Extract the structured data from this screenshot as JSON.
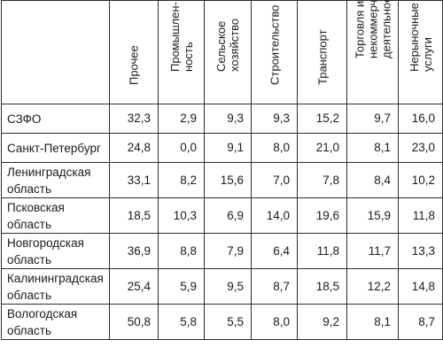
{
  "table": {
    "headers": [
      "",
      "Прочее",
      "Промышлен-\nность",
      "Сельское\nхозяйство",
      "Строительство",
      "Транспорт",
      "Торговля и\nнекоммерческая\nдеятельность",
      "Нерыночные\nуслуги"
    ],
    "rows": [
      {
        "region": "СЗФО",
        "values": [
          "32,3",
          "2,9",
          "9,3",
          "9,3",
          "15,2",
          "9,7",
          "16,0"
        ]
      },
      {
        "region": "Санкт-Петербург",
        "values": [
          "24,8",
          "0,0",
          "9,1",
          "8,0",
          "21,0",
          "8,1",
          "23,0"
        ]
      },
      {
        "region": "Ленинградская область",
        "values": [
          "33,1",
          "8,2",
          "15,6",
          "7,0",
          "7,8",
          "8,4",
          "10,2"
        ]
      },
      {
        "region": "Псковская область",
        "values": [
          "18,5",
          "10,3",
          "6,9",
          "14,0",
          "19,6",
          "15,9",
          "11,8"
        ]
      },
      {
        "region": "Новгородская область",
        "values": [
          "36,9",
          "8,8",
          "7,9",
          "6,4",
          "11,8",
          "11,7",
          "13,3"
        ]
      },
      {
        "region": "Калининградская область",
        "values": [
          "25,4",
          "5,9",
          "9,5",
          "8,7",
          "18,5",
          "12,2",
          "14,8"
        ]
      },
      {
        "region": "Вологодская область",
        "values": [
          "50,8",
          "5,8",
          "5,5",
          "8,0",
          "9,2",
          "8,1",
          "8,7"
        ]
      }
    ]
  }
}
